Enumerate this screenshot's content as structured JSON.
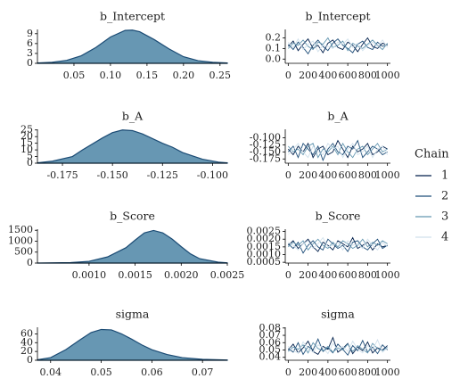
{
  "chart_data": [
    {
      "type": "density",
      "title": "b_Intercept",
      "color": "#6797b3",
      "line_color": "#1b4b74",
      "x": [
        0.0,
        0.02,
        0.04,
        0.06,
        0.08,
        0.1,
        0.12,
        0.13,
        0.14,
        0.16,
        0.18,
        0.2,
        0.22,
        0.24,
        0.26
      ],
      "values": [
        0.1,
        0.3,
        0.9,
        2.3,
        4.8,
        8.0,
        10.0,
        10.1,
        9.6,
        7.2,
        4.4,
        2.0,
        0.8,
        0.3,
        0.1
      ],
      "xlim": [
        0,
        0.26
      ],
      "xticks": [
        0.05,
        {
          "value": 0.1,
          "label": "0.10"
        },
        0.15,
        {
          "value": 0.2,
          "label": "0.20"
        },
        0.25
      ],
      "ylim": [
        0,
        10.3
      ],
      "yticks": [
        0,
        3,
        6,
        9
      ]
    },
    {
      "type": "trace",
      "title": "b_Intercept",
      "x": [
        0,
        50,
        100,
        150,
        200,
        250,
        300,
        350,
        400,
        450,
        500,
        550,
        600,
        650,
        700,
        750,
        800,
        850,
        900,
        950,
        1000
      ],
      "series": [
        {
          "values": [
            0.12,
            0.17,
            0.08,
            0.14,
            0.19,
            0.1,
            0.13,
            0.06,
            0.15,
            0.18,
            0.11,
            0.09,
            0.16,
            0.13,
            0.07,
            0.14,
            0.2,
            0.12,
            0.1,
            0.15,
            0.13
          ]
        },
        {
          "values": [
            0.14,
            0.09,
            0.16,
            0.11,
            0.05,
            0.13,
            0.18,
            0.12,
            0.08,
            0.15,
            0.19,
            0.13,
            0.1,
            0.06,
            0.14,
            0.17,
            0.11,
            0.09,
            0.16,
            0.12,
            0.14
          ]
        },
        {
          "values": [
            0.1,
            0.15,
            0.13,
            0.18,
            0.12,
            0.09,
            0.16,
            0.14,
            0.2,
            0.11,
            0.13,
            0.17,
            0.08,
            0.15,
            0.12,
            0.1,
            0.14,
            0.18,
            0.13,
            0.09,
            0.15
          ]
        },
        {
          "values": [
            0.16,
            0.11,
            0.19,
            0.09,
            0.14,
            0.17,
            0.07,
            0.13,
            0.12,
            0.1,
            0.16,
            0.14,
            0.19,
            0.11,
            0.15,
            0.08,
            0.13,
            0.16,
            0.12,
            0.18,
            0.11
          ]
        }
      ],
      "xlim": [
        -30,
        1030
      ],
      "xticks": [
        0,
        200,
        400,
        600,
        800,
        1000
      ],
      "ylim": [
        -0.04,
        0.28
      ],
      "yticks": [
        {
          "value": 0,
          "label": "0.0"
        },
        0.1,
        0.2
      ]
    },
    {
      "type": "density",
      "title": "b_A",
      "color": "#6797b3",
      "line_color": "#1b4b74",
      "x": [
        -0.1875,
        -0.18,
        -0.17,
        -0.165,
        -0.155,
        -0.15,
        -0.145,
        -0.14,
        -0.135,
        -0.125,
        -0.12,
        -0.115,
        -0.105,
        -0.097,
        -0.0926
      ],
      "values": [
        0.3,
        1.5,
        5,
        10,
        19,
        23,
        25,
        24.5,
        22,
        15,
        12,
        8,
        3,
        0.8,
        0.3
      ],
      "xlim": [
        -0.1875,
        -0.0926
      ],
      "xticks": [
        -0.175,
        {
          "value": -0.15,
          "label": "-0.150"
        },
        -0.125,
        {
          "value": -0.1,
          "label": "-0.100"
        }
      ],
      "ylim": [
        0,
        25.5
      ],
      "yticks": [
        0,
        5,
        10,
        15,
        20,
        25
      ]
    },
    {
      "type": "trace",
      "title": "b_A",
      "x": [
        0,
        50,
        100,
        150,
        200,
        250,
        300,
        350,
        400,
        450,
        500,
        550,
        600,
        650,
        700,
        750,
        800,
        850,
        900,
        950,
        1000
      ],
      "series": [
        {
          "values": [
            -0.14,
            -0.16,
            -0.13,
            -0.15,
            -0.12,
            -0.17,
            -0.14,
            -0.13,
            -0.16,
            -0.15,
            -0.11,
            -0.14,
            -0.17,
            -0.13,
            -0.15,
            -0.14,
            -0.12,
            -0.16,
            -0.15,
            -0.13,
            -0.14
          ]
        },
        {
          "values": [
            -0.15,
            -0.13,
            -0.17,
            -0.12,
            -0.14,
            -0.16,
            -0.13,
            -0.18,
            -0.14,
            -0.12,
            -0.15,
            -0.16,
            -0.13,
            -0.14,
            -0.11,
            -0.17,
            -0.15,
            -0.13,
            -0.14,
            -0.16,
            -0.15
          ]
        },
        {
          "values": [
            -0.13,
            -0.15,
            -0.14,
            -0.16,
            -0.13,
            -0.12,
            -0.17,
            -0.14,
            -0.15,
            -0.13,
            -0.16,
            -0.12,
            -0.15,
            -0.17,
            -0.14,
            -0.13,
            -0.16,
            -0.14,
            -0.12,
            -0.15,
            -0.14
          ]
        },
        {
          "values": [
            -0.16,
            -0.14,
            -0.12,
            -0.15,
            -0.17,
            -0.13,
            -0.15,
            -0.16,
            -0.12,
            -0.14,
            -0.13,
            -0.17,
            -0.14,
            -0.12,
            -0.16,
            -0.15,
            -0.13,
            -0.17,
            -0.14,
            -0.13,
            -0.16
          ]
        }
      ],
      "xlim": [
        -30,
        1030
      ],
      "xticks": [
        0,
        200,
        400,
        600,
        800,
        1000
      ],
      "ylim": [
        -0.19,
        -0.07
      ],
      "yticks": [
        -0.175,
        {
          "value": -0.15,
          "label": "-0.150"
        },
        -0.125,
        {
          "value": -0.1,
          "label": "-0.100"
        }
      ]
    },
    {
      "type": "density",
      "title": "b_Score",
      "color": "#6797b3",
      "line_color": "#1b4b74",
      "x": [
        0.00044,
        0.0008,
        0.001,
        0.0012,
        0.0014,
        0.0015,
        0.0016,
        0.0017,
        0.0018,
        0.0019,
        0.002,
        0.0021,
        0.0022,
        0.0024,
        0.0025
      ],
      "values": [
        2,
        20,
        80,
        280,
        700,
        1050,
        1380,
        1490,
        1380,
        1100,
        750,
        420,
        200,
        40,
        10
      ],
      "xlim": [
        0.00044,
        0.0025
      ],
      "xticks": [
        {
          "value": 0.001,
          "label": "0.0010"
        },
        0.0015,
        {
          "value": 0.002,
          "label": "0.0020"
        },
        0.0025
      ],
      "ylim": [
        0,
        1550
      ],
      "yticks": [
        0,
        500,
        1000,
        1500
      ]
    },
    {
      "type": "trace",
      "title": "b_Score",
      "x": [
        0,
        50,
        100,
        150,
        200,
        250,
        300,
        350,
        400,
        450,
        500,
        550,
        600,
        650,
        700,
        750,
        800,
        850,
        900,
        950,
        1000
      ],
      "series": [
        {
          "values": [
            0.0016,
            0.0019,
            0.0014,
            0.0017,
            0.002,
            0.0015,
            0.0012,
            0.0018,
            0.0016,
            0.0013,
            0.0019,
            0.0017,
            0.0015,
            0.0021,
            0.0014,
            0.0016,
            0.0018,
            0.0013,
            0.0017,
            0.0015,
            0.0016
          ]
        },
        {
          "values": [
            0.0017,
            0.0014,
            0.0018,
            0.0011,
            0.0016,
            0.0019,
            0.0015,
            0.0013,
            0.002,
            0.0017,
            0.0014,
            0.0016,
            0.0012,
            0.0018,
            0.0019,
            0.0015,
            0.0013,
            0.0017,
            0.002,
            0.0014,
            0.0016
          ]
        },
        {
          "values": [
            0.0015,
            0.0018,
            0.0016,
            0.0019,
            0.0013,
            0.0017,
            0.002,
            0.0016,
            0.0014,
            0.0018,
            0.0015,
            0.0019,
            0.0017,
            0.0014,
            0.0016,
            0.002,
            0.0015,
            0.0018,
            0.0016,
            0.0019,
            0.0017
          ]
        },
        {
          "values": [
            0.0018,
            0.0016,
            0.0013,
            0.0017,
            0.0019,
            0.0014,
            0.0017,
            0.0021,
            0.0015,
            0.0016,
            0.0018,
            0.0013,
            0.0019,
            0.0016,
            0.0017,
            0.0014,
            0.002,
            0.0016,
            0.0013,
            0.0018,
            0.0015
          ]
        }
      ],
      "xlim": [
        -30,
        1030
      ],
      "xticks": [
        0,
        200,
        400,
        600,
        800,
        1000
      ],
      "ylim": [
        0.00045,
        0.00265
      ],
      "yticks": [
        0.0005,
        {
          "value": 0.001,
          "label": "0.0010"
        },
        0.0015,
        {
          "value": 0.002,
          "label": "0.0020"
        },
        0.0025
      ]
    },
    {
      "type": "density",
      "title": "sigma",
      "color": "#6797b3",
      "line_color": "#1b4b74",
      "x": [
        0.0374,
        0.04,
        0.043,
        0.046,
        0.048,
        0.05,
        0.052,
        0.054,
        0.056,
        0.058,
        0.06,
        0.063,
        0.066,
        0.07,
        0.0749
      ],
      "values": [
        1,
        6,
        24,
        48,
        63,
        70,
        69,
        60,
        48,
        35,
        24,
        13,
        6,
        2,
        0.5
      ],
      "xlim": [
        0.0374,
        0.0749
      ],
      "xticks": [
        0.04,
        0.05,
        0.06,
        0.07
      ],
      "ylim": [
        0,
        75
      ],
      "yticks": [
        0,
        20,
        40,
        60
      ]
    },
    {
      "type": "trace",
      "title": "sigma",
      "x": [
        0,
        50,
        100,
        150,
        200,
        250,
        300,
        350,
        400,
        450,
        500,
        550,
        600,
        650,
        700,
        750,
        800,
        850,
        900,
        950,
        1000
      ],
      "series": [
        {
          "values": [
            0.05,
            0.058,
            0.046,
            0.053,
            0.062,
            0.048,
            0.044,
            0.055,
            0.051,
            0.067,
            0.047,
            0.052,
            0.059,
            0.045,
            0.054,
            0.049,
            0.061,
            0.046,
            0.053,
            0.05,
            0.056
          ]
        },
        {
          "values": [
            0.052,
            0.047,
            0.06,
            0.044,
            0.055,
            0.05,
            0.065,
            0.048,
            0.053,
            0.046,
            0.058,
            0.051,
            0.043,
            0.056,
            0.049,
            0.063,
            0.047,
            0.054,
            0.045,
            0.057,
            0.05
          ]
        },
        {
          "values": [
            0.048,
            0.054,
            0.051,
            0.057,
            0.046,
            0.06,
            0.052,
            0.049,
            0.055,
            0.047,
            0.053,
            0.05,
            0.058,
            0.048,
            0.056,
            0.051,
            0.046,
            0.059,
            0.052,
            0.049,
            0.054
          ]
        },
        {
          "values": [
            0.055,
            0.049,
            0.046,
            0.061,
            0.052,
            0.047,
            0.057,
            0.053,
            0.045,
            0.059,
            0.05,
            0.055,
            0.048,
            0.062,
            0.051,
            0.046,
            0.056,
            0.05,
            0.064,
            0.047,
            0.053
          ]
        }
      ],
      "xlim": [
        -30,
        1030
      ],
      "xticks": [
        0,
        200,
        400,
        600,
        800,
        1000
      ],
      "ylim": [
        0.036,
        0.081
      ],
      "yticks": [
        0.04,
        0.05,
        0.06,
        0.07,
        0.08
      ]
    }
  ],
  "legend": {
    "title": "Chain",
    "items": [
      {
        "name": "1",
        "color": "#011f4b"
      },
      {
        "name": "2",
        "color": "#1f4e79"
      },
      {
        "name": "3",
        "color": "#6497b1"
      },
      {
        "name": "4",
        "color": "#d1e1ec"
      }
    ]
  }
}
